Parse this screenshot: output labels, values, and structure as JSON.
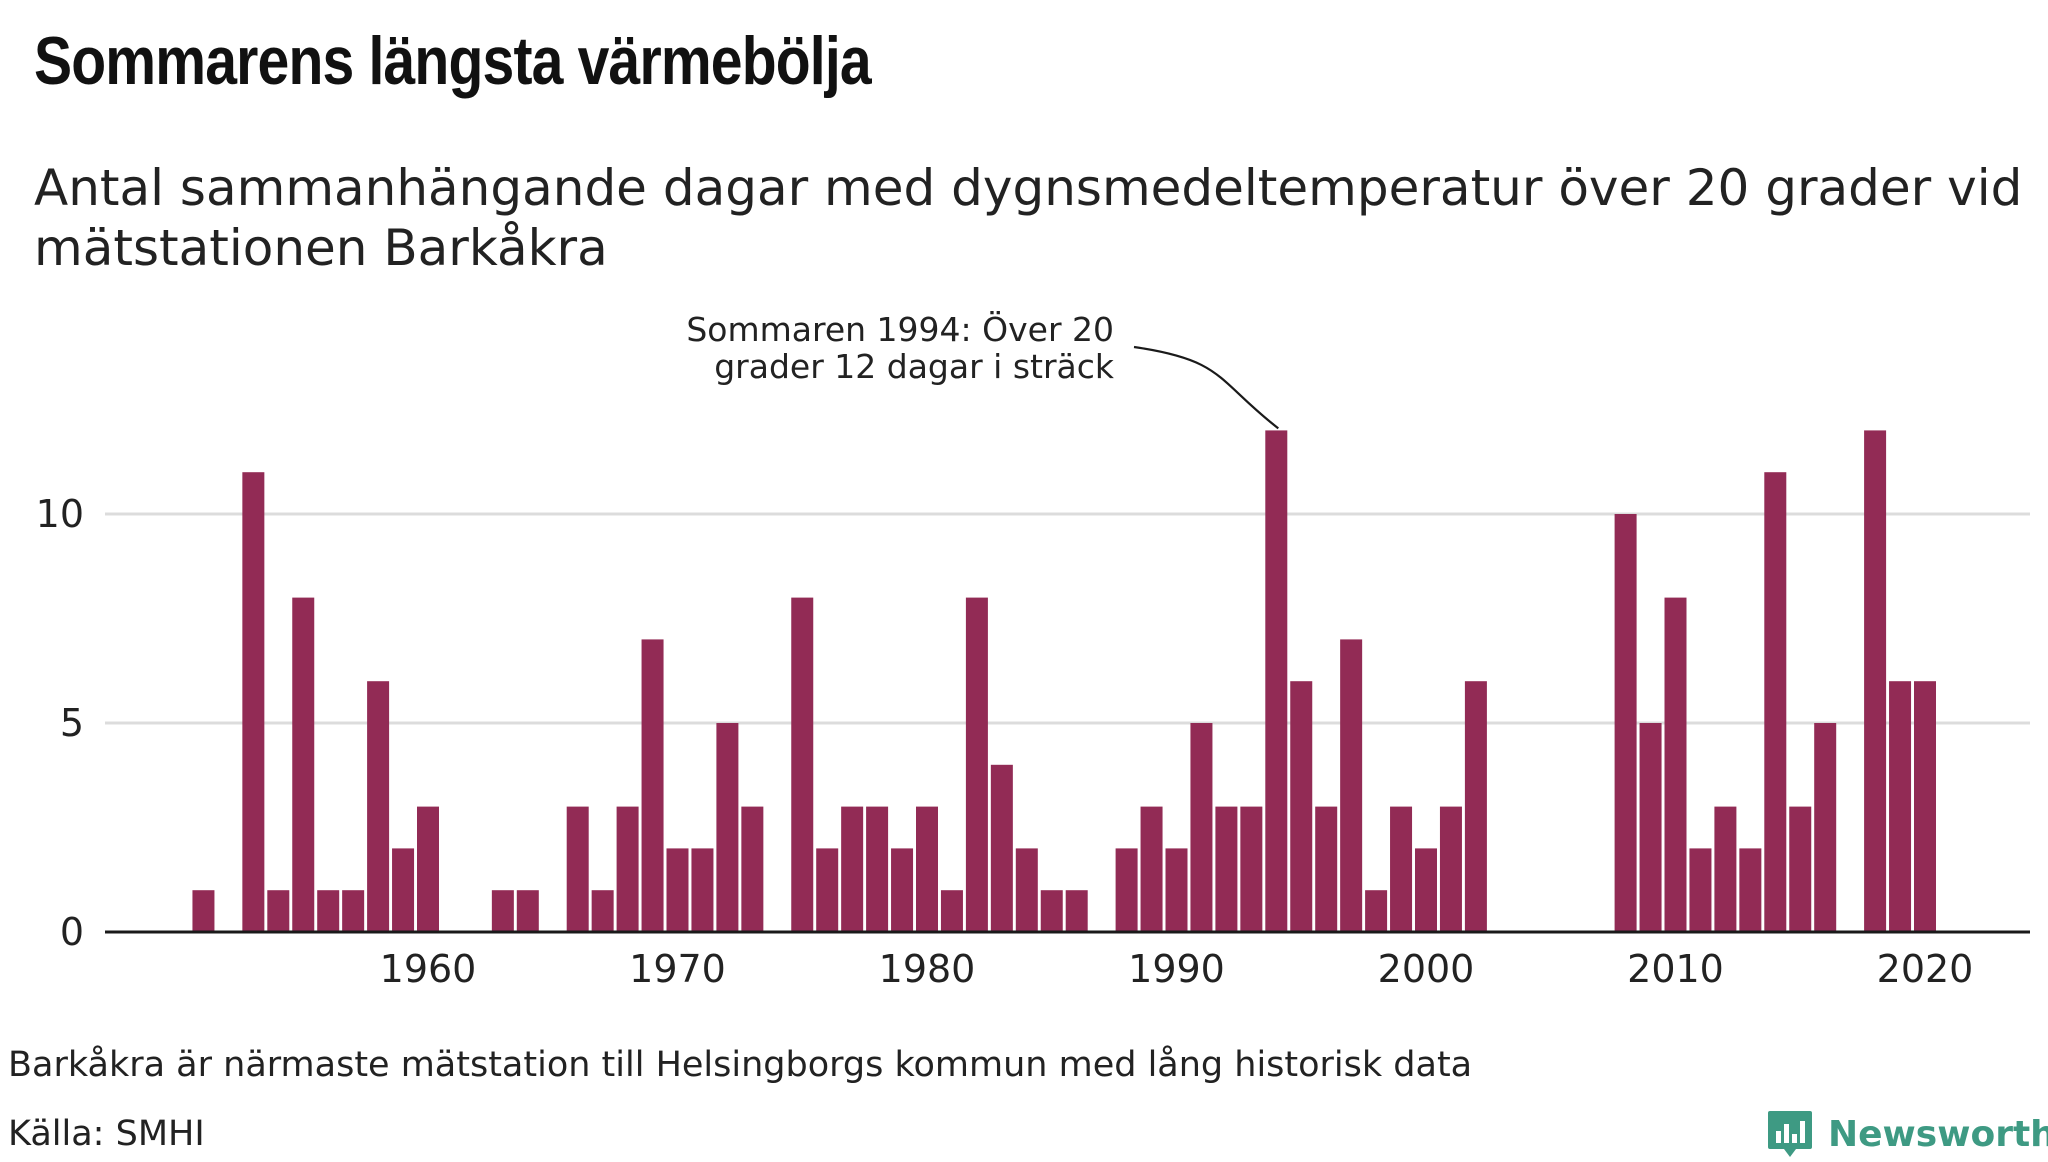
{
  "title": "Sommarens längsta värmebölja",
  "subtitle": "Antal sammanhängande dagar med dygnsmedeltemperatur över 20 grader vid mätstationen Barkåkra",
  "footnote": "Barkåkra är närmaste mätstation till Helsingborgs kommun med lång historisk data",
  "source": "Källa: SMHI",
  "brand": {
    "name": "Newsworthy",
    "icon": "newsworthy-logo-icon",
    "color": "#3e9a83"
  },
  "chart_data": {
    "type": "bar",
    "title": "Sommarens längsta värmebölja",
    "xlabel": "",
    "ylabel": "",
    "bar_color": "#922b55",
    "ylim": [
      0,
      12
    ],
    "xlim": [
      1950,
      2022
    ],
    "y_ticks": [
      0,
      5,
      10
    ],
    "x_ticks": [
      1960,
      1970,
      1980,
      1990,
      2000,
      2010,
      2020
    ],
    "grid": "horizontal",
    "annotation": {
      "year": 1994,
      "lines": [
        "Sommaren 1994: Över 20",
        "grader 12 dagar i sträck"
      ]
    },
    "x": [
      1951,
      1953,
      1954,
      1955,
      1956,
      1957,
      1958,
      1959,
      1960,
      1963,
      1964,
      1966,
      1967,
      1968,
      1969,
      1970,
      1971,
      1972,
      1973,
      1975,
      1976,
      1977,
      1978,
      1979,
      1980,
      1981,
      1982,
      1983,
      1984,
      1985,
      1986,
      1988,
      1989,
      1990,
      1991,
      1992,
      1993,
      1994,
      1995,
      1996,
      1997,
      1998,
      1999,
      2000,
      2001,
      2002,
      2008,
      2009,
      2010,
      2011,
      2012,
      2013,
      2014,
      2015,
      2016,
      2018,
      2019,
      2020
    ],
    "values": [
      1,
      11,
      1,
      8,
      1,
      1,
      6,
      2,
      3,
      1,
      1,
      3,
      1,
      3,
      7,
      2,
      2,
      5,
      3,
      8,
      2,
      3,
      3,
      2,
      3,
      1,
      8,
      4,
      2,
      1,
      1,
      2,
      3,
      2,
      5,
      3,
      3,
      12,
      6,
      3,
      7,
      1,
      3,
      2,
      3,
      6,
      10,
      5,
      8,
      2,
      3,
      2,
      11,
      3,
      5,
      12,
      6,
      6
    ]
  }
}
